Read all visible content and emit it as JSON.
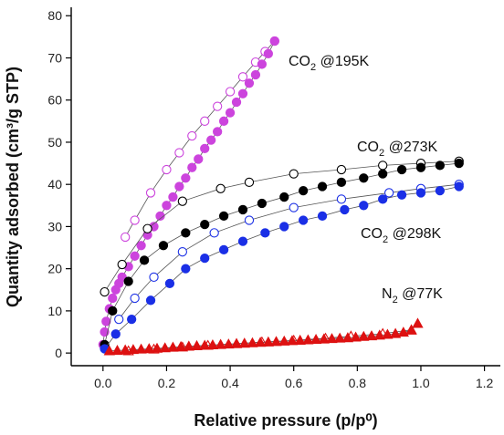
{
  "chart_data": {
    "type": "scatter",
    "xlabel": "Relative pressure (p/p⁰)",
    "ylabel": "Quantity adsorbed (cm³/g STP)",
    "xlim": [
      -0.1,
      1.25
    ],
    "ylim": [
      -3,
      82
    ],
    "x_ticks": [
      0.0,
      0.2,
      0.4,
      0.6,
      0.8,
      1.0,
      1.2
    ],
    "x_tick_labels": [
      "0.0",
      "0.2",
      "0.4",
      "0.6",
      "0.8",
      "1.0",
      "1.2"
    ],
    "y_ticks": [
      0,
      10,
      20,
      30,
      40,
      50,
      60,
      70,
      80
    ],
    "y_tick_labels": [
      "0",
      "10",
      "20",
      "30",
      "40",
      "50",
      "60",
      "70",
      "80"
    ],
    "grid": false,
    "legend": "none (series labelled directly on the plot)",
    "series": [
      {
        "name": "CO₂ @195K",
        "label_parts": [
          "CO",
          "2",
          " @195K"
        ],
        "color": "#cc44dd",
        "marker": "circle",
        "adsorption": {
          "x": [
            0.0,
            0.005,
            0.01,
            0.02,
            0.03,
            0.04,
            0.05,
            0.06,
            0.08,
            0.1,
            0.12,
            0.14,
            0.16,
            0.18,
            0.2,
            0.22,
            0.24,
            0.26,
            0.28,
            0.3,
            0.32,
            0.34,
            0.36,
            0.38,
            0.4,
            0.42,
            0.44,
            0.46,
            0.48,
            0.5,
            0.52,
            0.54
          ],
          "y": [
            2,
            5,
            7.5,
            10.5,
            13,
            15,
            16.5,
            18,
            20.5,
            23,
            25.5,
            28,
            30,
            32.5,
            35,
            37,
            39.5,
            41.5,
            44,
            46,
            48.5,
            50.5,
            52.5,
            55,
            57,
            59.5,
            61.5,
            64,
            66,
            68.5,
            71,
            74
          ]
        },
        "desorption": {
          "x": [
            0.54,
            0.51,
            0.48,
            0.44,
            0.4,
            0.36,
            0.32,
            0.28,
            0.24,
            0.2,
            0.15,
            0.1,
            0.07
          ],
          "y": [
            74,
            71.5,
            69,
            65.5,
            62,
            58.5,
            55,
            51.5,
            47.5,
            43.5,
            38,
            31.5,
            27.5
          ]
        }
      },
      {
        "name": "CO₂ @273K",
        "label_parts": [
          "CO",
          "2",
          " @273K"
        ],
        "color": "#000000",
        "marker": "circle",
        "adsorption": {
          "x": [
            0.005,
            0.03,
            0.08,
            0.13,
            0.19,
            0.26,
            0.32,
            0.38,
            0.44,
            0.5,
            0.57,
            0.63,
            0.69,
            0.75,
            0.82,
            0.88,
            0.94,
            1.0,
            1.06,
            1.12
          ],
          "y": [
            2,
            10,
            17,
            22,
            25.5,
            28.5,
            30.5,
            32.5,
            34,
            35.5,
            37,
            38.5,
            39.5,
            40.5,
            41.5,
            42.5,
            43.5,
            44,
            44.5,
            45
          ]
        },
        "desorption": {
          "x": [
            1.12,
            1.0,
            0.88,
            0.75,
            0.6,
            0.46,
            0.37,
            0.25,
            0.14,
            0.06,
            0.005
          ],
          "y": [
            45.5,
            45,
            44.5,
            43.5,
            42.5,
            40.5,
            39,
            36,
            29.5,
            21,
            14.5
          ]
        }
      },
      {
        "name": "CO₂ @298K",
        "label_parts": [
          "CO",
          "2",
          " @298K"
        ],
        "color": "#1a2fe6",
        "marker": "circle",
        "adsorption": {
          "x": [
            0.005,
            0.04,
            0.09,
            0.15,
            0.21,
            0.26,
            0.32,
            0.38,
            0.44,
            0.51,
            0.57,
            0.63,
            0.69,
            0.76,
            0.82,
            0.88,
            0.94,
            1.0,
            1.06,
            1.12
          ],
          "y": [
            1,
            4.5,
            8,
            12.5,
            16.5,
            20,
            22.5,
            24.5,
            26.5,
            28.5,
            30,
            31.5,
            32.5,
            34,
            35,
            36.5,
            37.5,
            38,
            38.5,
            39.5
          ]
        },
        "desorption": {
          "x": [
            1.12,
            1.0,
            0.9,
            0.75,
            0.6,
            0.46,
            0.35,
            0.25,
            0.16,
            0.1,
            0.05
          ],
          "y": [
            40,
            39,
            38,
            36.5,
            34.5,
            31.5,
            28.5,
            24,
            18,
            13,
            8
          ]
        }
      },
      {
        "name": "N₂ @77K",
        "label_parts": [
          "N",
          "2",
          " @77K"
        ],
        "color": "#dd1111",
        "marker": "triangle",
        "adsorption": {
          "x": [
            0.02,
            0.045,
            0.07,
            0.095,
            0.12,
            0.145,
            0.17,
            0.195,
            0.22,
            0.245,
            0.27,
            0.295,
            0.32,
            0.345,
            0.37,
            0.395,
            0.42,
            0.445,
            0.47,
            0.495,
            0.52,
            0.545,
            0.57,
            0.595,
            0.62,
            0.645,
            0.67,
            0.695,
            0.72,
            0.745,
            0.77,
            0.795,
            0.82,
            0.845,
            0.87,
            0.895,
            0.92,
            0.945,
            0.97,
            0.99
          ],
          "y": [
            0.5,
            0.6,
            0.7,
            0.8,
            0.9,
            1.0,
            1.1,
            1.2,
            1.35,
            1.5,
            1.6,
            1.7,
            1.8,
            1.9,
            2.0,
            2.1,
            2.2,
            2.3,
            2.4,
            2.5,
            2.6,
            2.7,
            2.8,
            2.9,
            3.0,
            3.1,
            3.2,
            3.3,
            3.4,
            3.5,
            3.6,
            3.75,
            3.9,
            4.05,
            4.2,
            4.4,
            4.6,
            4.9,
            5.4,
            7.0
          ]
        },
        "desorption": {
          "x": [
            0.97,
            0.88,
            0.78,
            0.7,
            0.6,
            0.5,
            0.42,
            0.33,
            0.25,
            0.16,
            0.08
          ],
          "y": [
            5.5,
            4.6,
            4.0,
            3.5,
            3.0,
            2.6,
            2.2,
            1.8,
            1.4,
            0.9,
            0.5
          ]
        }
      }
    ]
  }
}
